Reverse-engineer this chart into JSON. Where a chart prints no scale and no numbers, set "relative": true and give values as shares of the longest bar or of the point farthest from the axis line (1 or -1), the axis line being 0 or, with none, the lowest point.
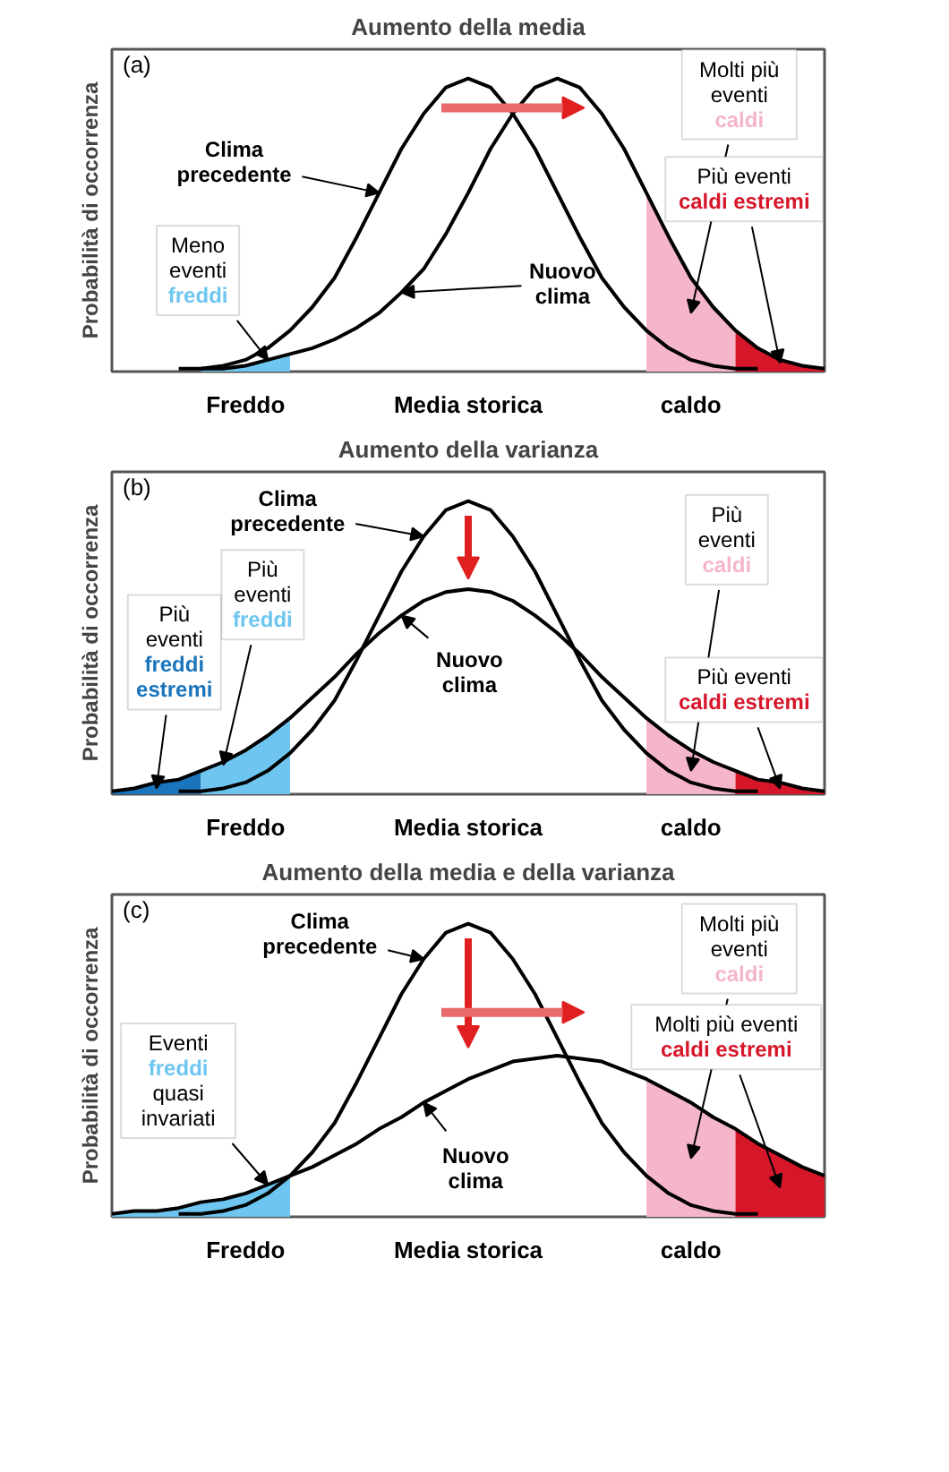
{
  "chart_data": [
    {
      "type": "line",
      "title": "Aumento della media",
      "ylabel": "Probabilità di occorrenza",
      "relative": true,
      "grid": false,
      "tick_labels": "x",
      "line_style": "solid",
      "marker": "none",
      "categories": [
        null,
        null,
        null,
        null,
        null,
        null,
        "Freddo",
        null,
        null,
        null,
        null,
        null,
        null,
        null,
        null,
        null,
        "Media storica",
        null,
        null,
        null,
        null,
        null,
        null,
        null,
        null,
        null,
        "caldo",
        null,
        null,
        null,
        null,
        null,
        null
      ],
      "series": [
        {
          "color": "#000000",
          "values": [
            null,
            null,
            null,
            0.01,
            0.01,
            0.02,
            0.04,
            0.08,
            0.14,
            0.22,
            0.32,
            0.46,
            0.61,
            0.76,
            0.88,
            0.97,
            1,
            0.97,
            0.88,
            0.76,
            0.61,
            0.46,
            0.32,
            0.22,
            0.14,
            0.08,
            0.04,
            0.02,
            0.01,
            0.01,
            null,
            null,
            null
          ]
        },
        {
          "color": "#000000",
          "values": [
            null,
            null,
            null,
            null,
            0.01,
            0.01,
            0.02,
            0.04,
            0.06,
            0.08,
            0.11,
            0.15,
            0.2,
            0.27,
            0.35,
            0.47,
            0.61,
            0.76,
            0.88,
            0.97,
            1,
            0.97,
            0.88,
            0.76,
            0.61,
            0.46,
            0.32,
            0.22,
            0.14,
            0.08,
            0.04,
            0.02,
            0.01
          ]
        },
        {
          "type": "area",
          "color": "#6ec6f0",
          "values": [
            null,
            null,
            null,
            null,
            0.01,
            0.01,
            0.02,
            0.04,
            0.06,
            null,
            null,
            null,
            null,
            null,
            null,
            null,
            null,
            null,
            null,
            null,
            null,
            null,
            null,
            null,
            null,
            null,
            null,
            null,
            null,
            null,
            null,
            null,
            null
          ]
        },
        {
          "type": "area",
          "color": "#f4b6c8",
          "values": [
            null,
            null,
            null,
            null,
            null,
            null,
            null,
            null,
            null,
            null,
            null,
            null,
            null,
            null,
            null,
            null,
            null,
            null,
            null,
            null,
            null,
            null,
            null,
            null,
            0.61,
            0.46,
            0.32,
            0.22,
            0.14,
            null,
            null,
            null,
            null
          ]
        },
        {
          "type": "area",
          "color": "#d6172a",
          "values": [
            null,
            null,
            null,
            null,
            null,
            null,
            null,
            null,
            null,
            null,
            null,
            null,
            null,
            null,
            null,
            null,
            null,
            null,
            null,
            null,
            null,
            null,
            null,
            null,
            null,
            null,
            null,
            null,
            0.14,
            0.08,
            0.04,
            0.02,
            0.01
          ]
        }
      ],
      "annotations": [
        "(a)",
        "Clima\nprecedente",
        "Meno\neventi\nfreddi",
        "Nuovo\nclima",
        "Molti più\neventi\ncaldi",
        "Più eventi\ncaldi estremi"
      ]
    },
    {
      "type": "line",
      "title": "Aumento della varianza",
      "ylabel": "Probabilità di occorrenza",
      "relative": true,
      "grid": false,
      "tick_labels": "x",
      "line_style": "solid",
      "marker": "none",
      "categories": [
        null,
        null,
        null,
        null,
        null,
        null,
        "Freddo",
        null,
        null,
        null,
        null,
        null,
        null,
        null,
        null,
        null,
        "Media storica",
        null,
        null,
        null,
        null,
        null,
        null,
        null,
        null,
        null,
        "caldo",
        null,
        null,
        null,
        null,
        null,
        null
      ],
      "series": [
        {
          "color": "#000000",
          "values": [
            null,
            null,
            null,
            0.01,
            0.01,
            0.02,
            0.04,
            0.08,
            0.14,
            0.22,
            0.32,
            0.46,
            0.61,
            0.76,
            0.88,
            0.97,
            1,
            0.97,
            0.88,
            0.76,
            0.61,
            0.46,
            0.32,
            0.22,
            0.14,
            0.08,
            0.04,
            0.02,
            0.01,
            0.01,
            null,
            null,
            null
          ]
        },
        {
          "color": "#000000",
          "values": [
            0.01,
            0.02,
            0.04,
            0.05,
            0.08,
            0.11,
            0.15,
            0.2,
            0.26,
            0.33,
            0.4,
            0.48,
            0.55,
            0.61,
            0.66,
            0.69,
            0.7,
            0.69,
            0.66,
            0.61,
            0.55,
            0.48,
            0.4,
            0.33,
            0.26,
            0.2,
            0.15,
            0.11,
            0.08,
            0.05,
            0.04,
            0.02,
            0.01
          ]
        },
        {
          "type": "area",
          "color": "#1b75bc",
          "values": [
            0.01,
            0.02,
            0.04,
            0.05,
            0.08,
            null,
            null,
            null,
            null,
            null,
            null,
            null,
            null,
            null,
            null,
            null,
            null,
            null,
            null,
            null,
            null,
            null,
            null,
            null,
            null,
            null,
            null,
            null,
            null,
            null,
            null,
            null,
            null
          ]
        },
        {
          "type": "area",
          "color": "#6ec6f0",
          "values": [
            null,
            null,
            null,
            null,
            0.08,
            0.11,
            0.15,
            0.2,
            0.26,
            null,
            null,
            null,
            null,
            null,
            null,
            null,
            null,
            null,
            null,
            null,
            null,
            null,
            null,
            null,
            null,
            null,
            null,
            null,
            null,
            null,
            null,
            null,
            null
          ]
        },
        {
          "type": "area",
          "color": "#f4b6c8",
          "values": [
            null,
            null,
            null,
            null,
            null,
            null,
            null,
            null,
            null,
            null,
            null,
            null,
            null,
            null,
            null,
            null,
            null,
            null,
            null,
            null,
            null,
            null,
            null,
            null,
            0.26,
            0.2,
            0.15,
            0.11,
            0.08,
            null,
            null,
            null,
            null
          ]
        },
        {
          "type": "area",
          "color": "#d6172a",
          "values": [
            null,
            null,
            null,
            null,
            null,
            null,
            null,
            null,
            null,
            null,
            null,
            null,
            null,
            null,
            null,
            null,
            null,
            null,
            null,
            null,
            null,
            null,
            null,
            null,
            null,
            null,
            null,
            null,
            0.08,
            0.05,
            0.04,
            0.02,
            0.01
          ]
        }
      ],
      "annotations": [
        "(b)",
        "Clima\nprecedente",
        "Più\neventi\nfreddi",
        "Più\neventi\nfreddi\nestremi",
        "Nuovo\nclima",
        "Più\neventi\ncaldi",
        "Più eventi\ncaldi estremi"
      ]
    },
    {
      "type": "line",
      "title": "Aumento della media e della varianza",
      "ylabel": "Probabilità di occorrenza",
      "relative": true,
      "grid": false,
      "tick_labels": "x",
      "line_style": "solid",
      "marker": "none",
      "categories": [
        null,
        null,
        null,
        null,
        null,
        null,
        "Freddo",
        null,
        null,
        null,
        null,
        null,
        null,
        null,
        null,
        null,
        "Media storica",
        null,
        null,
        null,
        null,
        null,
        null,
        null,
        null,
        null,
        "caldo",
        null,
        null,
        null,
        null,
        null,
        null
      ],
      "series": [
        {
          "color": "#000000",
          "values": [
            null,
            null,
            null,
            0.01,
            0.01,
            0.02,
            0.04,
            0.08,
            0.14,
            0.22,
            0.32,
            0.46,
            0.61,
            0.76,
            0.88,
            0.97,
            1,
            0.97,
            0.88,
            0.76,
            0.61,
            0.46,
            0.32,
            0.22,
            0.14,
            0.08,
            0.04,
            0.02,
            0.01,
            0.01,
            null,
            null,
            null
          ]
        },
        {
          "color": "#000000",
          "values": [
            0.01,
            0.02,
            0.02,
            0.03,
            0.05,
            0.06,
            0.08,
            0.11,
            0.14,
            0.17,
            0.21,
            0.25,
            0.3,
            0.34,
            0.39,
            0.43,
            0.47,
            0.5,
            0.53,
            0.54,
            0.55,
            0.54,
            0.53,
            0.5,
            0.47,
            0.43,
            0.39,
            0.34,
            0.3,
            0.25,
            0.21,
            0.17,
            0.14
          ]
        },
        {
          "type": "area",
          "color": "#6ec6f0",
          "values": [
            0.01,
            0.02,
            0.02,
            0.03,
            0.05,
            0.06,
            0.08,
            0.11,
            0.14,
            null,
            null,
            null,
            null,
            null,
            null,
            null,
            null,
            null,
            null,
            null,
            null,
            null,
            null,
            null,
            null,
            null,
            null,
            null,
            null,
            null,
            null,
            null,
            null
          ]
        },
        {
          "type": "area",
          "color": "#f4b6c8",
          "values": [
            null,
            null,
            null,
            null,
            null,
            null,
            null,
            null,
            null,
            null,
            null,
            null,
            null,
            null,
            null,
            null,
            null,
            null,
            null,
            null,
            null,
            null,
            null,
            null,
            0.47,
            0.43,
            0.39,
            0.34,
            0.3,
            null,
            null,
            null,
            null
          ]
        },
        {
          "type": "area",
          "color": "#d6172a",
          "values": [
            null,
            null,
            null,
            null,
            null,
            null,
            null,
            null,
            null,
            null,
            null,
            null,
            null,
            null,
            null,
            null,
            null,
            null,
            null,
            null,
            null,
            null,
            null,
            null,
            null,
            null,
            null,
            null,
            0.3,
            0.25,
            0.21,
            0.17,
            0.14
          ]
        }
      ],
      "annotations": [
        "(c)",
        "Clima\nprecedente",
        "Eventi\nfreddi\nquasi\ninvariati",
        "Nuovo\nclima",
        "Molti più\neventi\ncaldi",
        "Molti più eventi\ncaldi estremi"
      ]
    }
  ]
}
